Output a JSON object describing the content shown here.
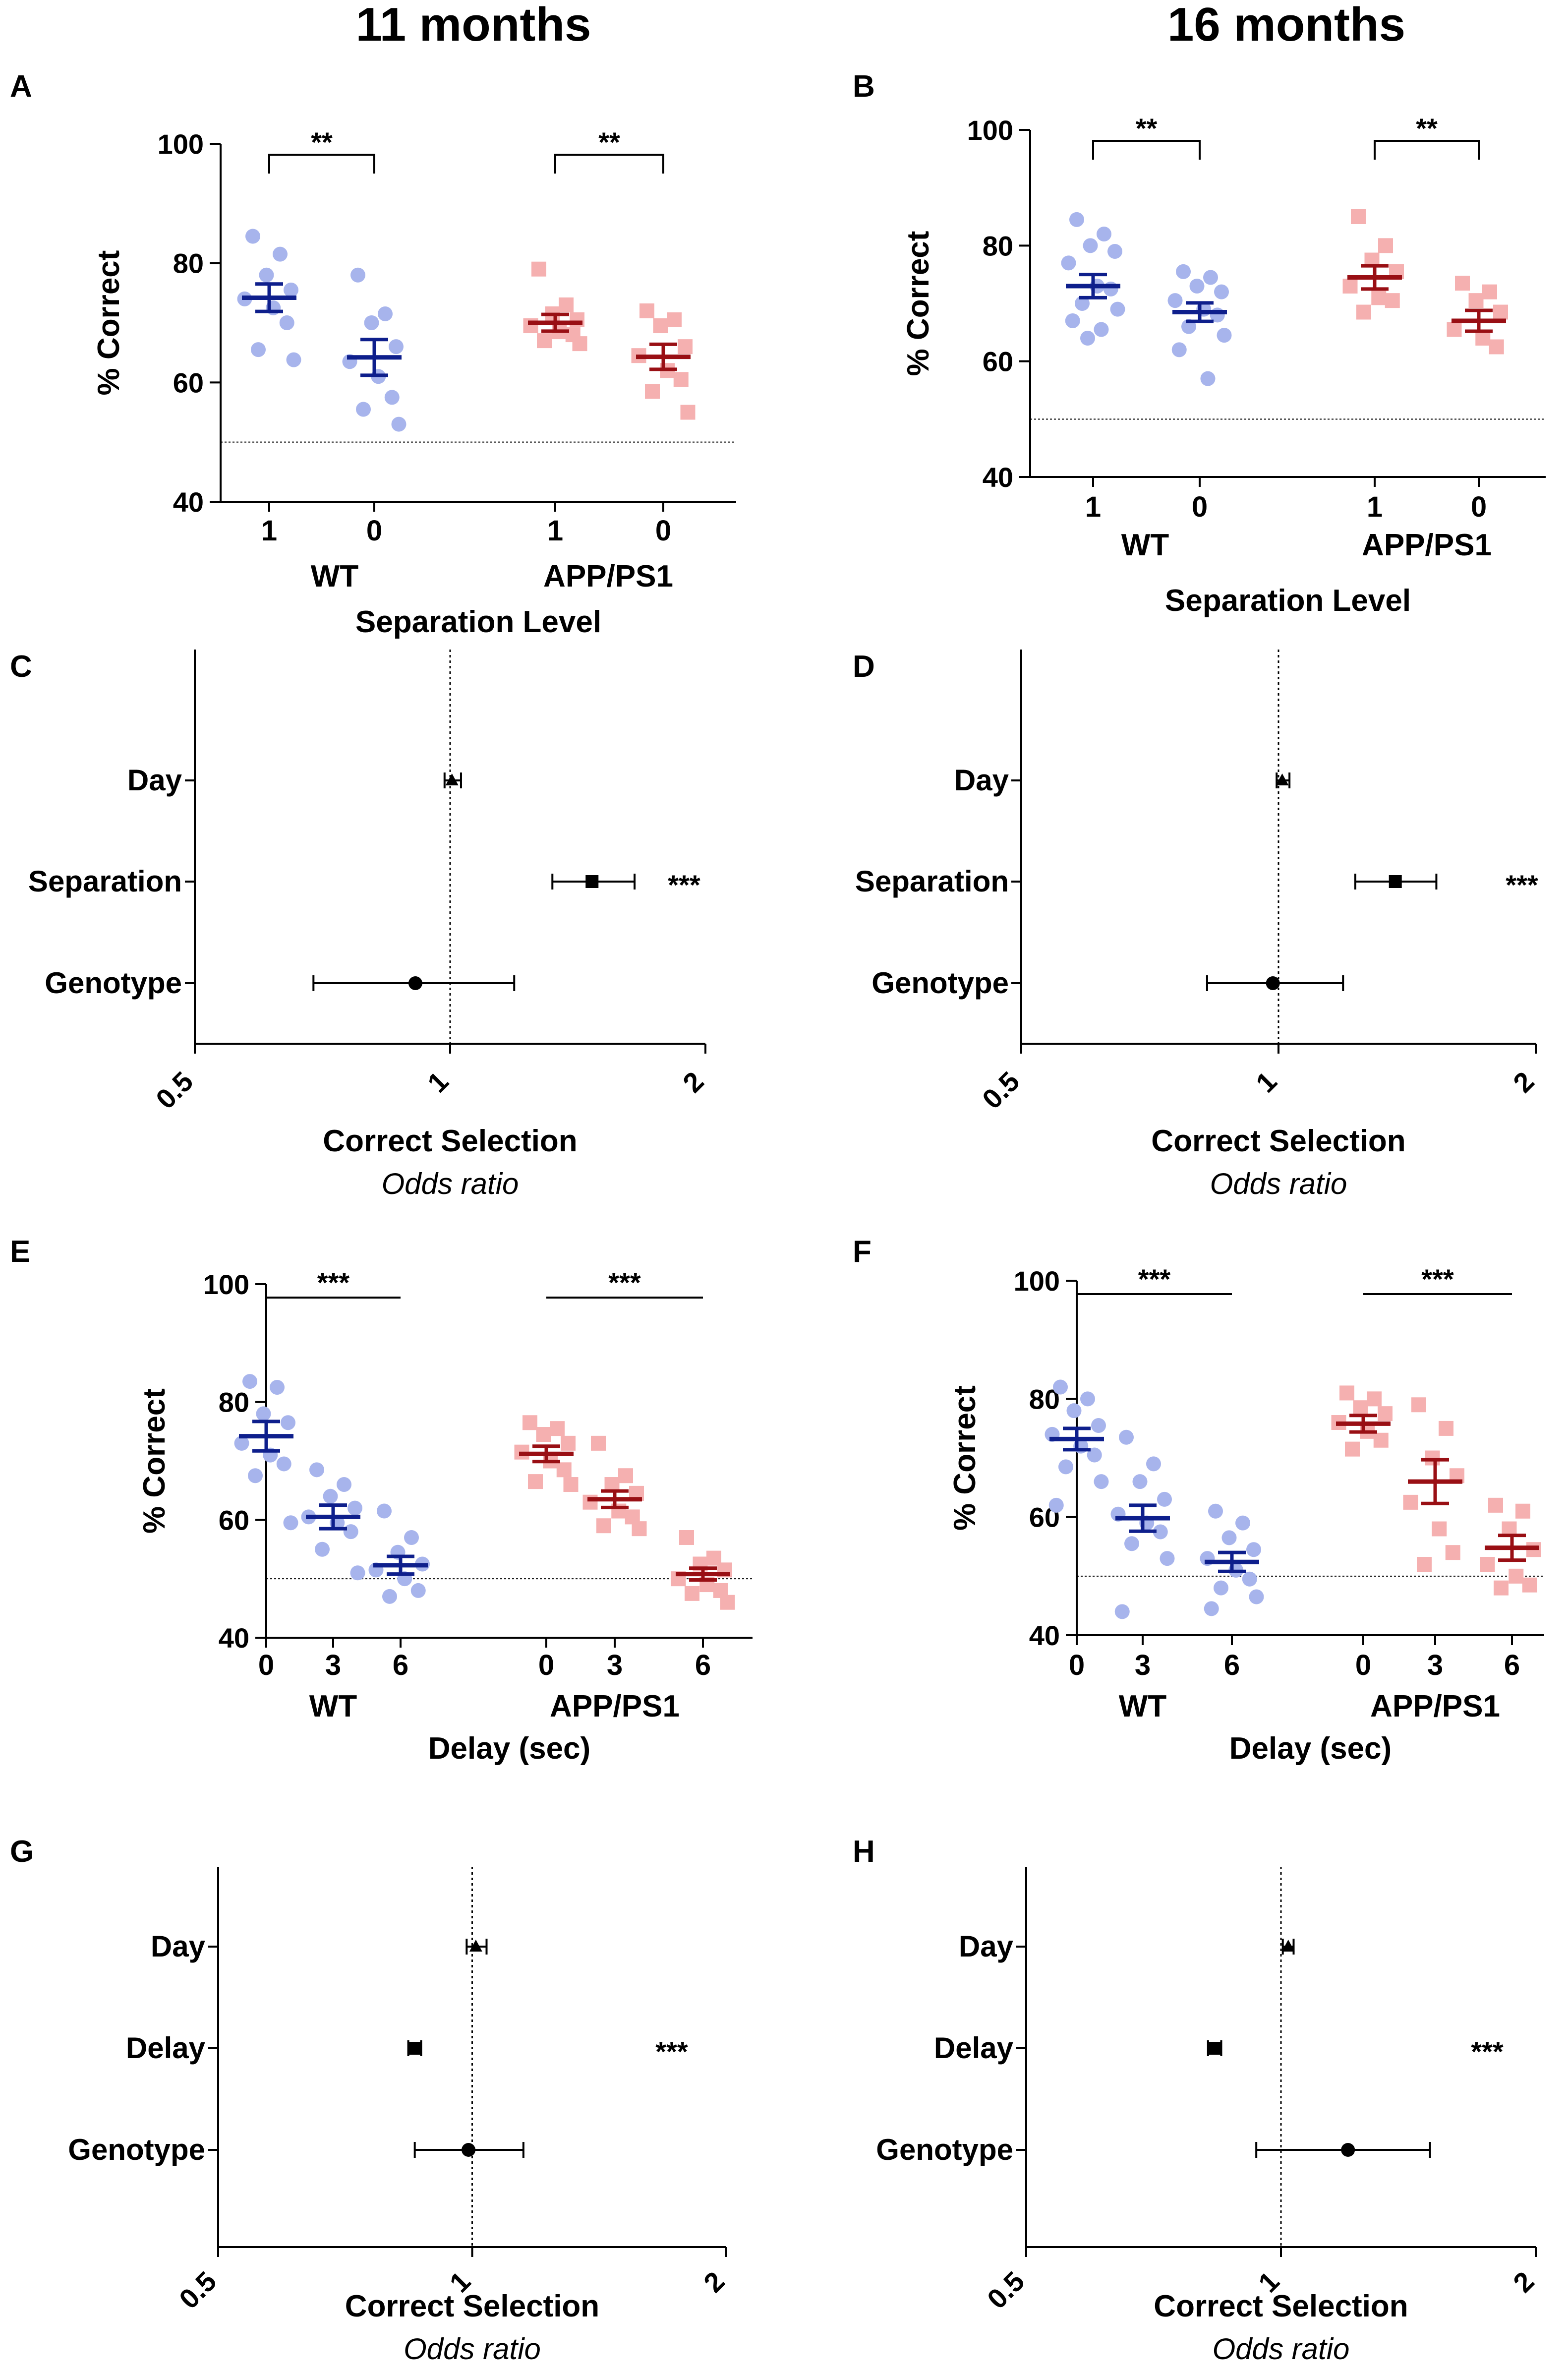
{
  "columns": [
    {
      "title": "11 months"
    },
    {
      "title": "16 months"
    }
  ],
  "colors": {
    "wt_point": "#a7b4ec",
    "wt_mean": "#0e1f8c",
    "app_point": "#f5b0b0",
    "app_mean": "#990f14",
    "axis": "#000000"
  },
  "chart_data": [
    {
      "type": "scatter",
      "panel": "A",
      "ylabel": "% Correct",
      "xlabel": "Separation Level",
      "ylim": [
        40,
        100
      ],
      "yticks": [
        40,
        60,
        80,
        100
      ],
      "chance": 50,
      "groups": [
        {
          "name": "WT",
          "series": [
            {
              "tick": "1",
              "mean": 74.2,
              "sem": 2.3,
              "points": [
                84.5,
                81.5,
                78.0,
                75.5,
                74.0,
                72.5,
                70.0,
                65.5,
                63.8
              ]
            },
            {
              "tick": "0",
              "mean": 64.2,
              "sem": 3.0,
              "points": [
                78.0,
                71.5,
                70.0,
                66.0,
                63.5,
                61.0,
                57.5,
                55.5,
                53.0
              ]
            }
          ]
        },
        {
          "name": "APP/PS1",
          "series": [
            {
              "tick": "1",
              "mean": 70.0,
              "sem": 1.4,
              "points": [
                79.0,
                73.0,
                71.5,
                70.5,
                69.5,
                68.5,
                68.0,
                67.0,
                66.5
              ]
            },
            {
              "tick": "0",
              "mean": 64.3,
              "sem": 2.1,
              "points": [
                72.0,
                70.5,
                69.5,
                66.0,
                64.5,
                62.0,
                60.5,
                58.5,
                55.0
              ]
            }
          ]
        }
      ],
      "brackets": [
        {
          "group": 0,
          "label": "**",
          "style": "bracket"
        },
        {
          "group": 1,
          "label": "**",
          "style": "bracket"
        }
      ]
    },
    {
      "type": "scatter",
      "panel": "B",
      "ylabel": "% Correct",
      "xlabel": "Separation Level",
      "ylim": [
        40,
        100
      ],
      "yticks": [
        40,
        60,
        80,
        100
      ],
      "chance": 50,
      "groups": [
        {
          "name": "WT",
          "series": [
            {
              "tick": "1",
              "mean": 73.0,
              "sem": 2.0,
              "points": [
                84.5,
                82.0,
                80.0,
                79.0,
                77.0,
                73.0,
                72.5,
                70.0,
                69.0,
                67.0,
                65.5,
                64.0
              ]
            },
            {
              "tick": "0",
              "mean": 68.5,
              "sem": 1.6,
              "points": [
                75.5,
                74.5,
                73.0,
                72.0,
                70.5,
                69.0,
                68.0,
                66.0,
                64.5,
                62.0,
                57.0
              ]
            }
          ]
        },
        {
          "name": "APP/PS1",
          "series": [
            {
              "tick": "1",
              "mean": 74.5,
              "sem": 2.0,
              "points": [
                85.0,
                80.0,
                77.5,
                75.5,
                73.0,
                71.0,
                70.5,
                68.5
              ]
            },
            {
              "tick": "0",
              "mean": 67.0,
              "sem": 1.8,
              "points": [
                73.5,
                72.0,
                70.5,
                68.5,
                65.5,
                64.0,
                62.5
              ]
            }
          ]
        }
      ],
      "brackets": [
        {
          "group": 0,
          "label": "**",
          "style": "bracket"
        },
        {
          "group": 1,
          "label": "**",
          "style": "bracket"
        }
      ]
    },
    {
      "type": "forest",
      "panel": "C",
      "xlabel": "Correct Selection",
      "xsublabel": "Odds ratio",
      "xlim": [
        0.5,
        2
      ],
      "xticks": [
        "0.5",
        "1",
        "2"
      ],
      "refline": 1,
      "rows": [
        {
          "label": "Day",
          "marker": "triangle",
          "or": 1.005,
          "lo": 0.985,
          "hi": 1.03,
          "sig": ""
        },
        {
          "label": "Separation",
          "marker": "square",
          "or": 1.47,
          "lo": 1.32,
          "hi": 1.65,
          "sig": "***"
        },
        {
          "label": "Genotype",
          "marker": "circle",
          "or": 0.91,
          "lo": 0.69,
          "hi": 1.19,
          "sig": ""
        }
      ]
    },
    {
      "type": "forest",
      "panel": "D",
      "xlabel": "Correct Selection",
      "xsublabel": "Odds ratio",
      "xlim": [
        0.5,
        2
      ],
      "xticks": [
        "0.5",
        "1",
        "2"
      ],
      "refline": 1,
      "rows": [
        {
          "label": "Day",
          "marker": "triangle",
          "or": 1.01,
          "lo": 0.995,
          "hi": 1.03,
          "sig": ""
        },
        {
          "label": "Separation",
          "marker": "square",
          "or": 1.37,
          "lo": 1.23,
          "hi": 1.53,
          "sig": "***"
        },
        {
          "label": "Genotype",
          "marker": "circle",
          "or": 0.985,
          "lo": 0.825,
          "hi": 1.19,
          "sig": ""
        }
      ]
    },
    {
      "type": "scatter",
      "panel": "E",
      "ylabel": "% Correct",
      "xlabel": "Delay (sec)",
      "ylim": [
        40,
        100
      ],
      "yticks": [
        40,
        60,
        80,
        100
      ],
      "chance": 50,
      "groups": [
        {
          "name": "WT",
          "series": [
            {
              "tick": "0",
              "mean": 74.2,
              "sem": 2.5,
              "points": [
                83.5,
                82.5,
                78.0,
                76.5,
                73.0,
                71.0,
                69.5,
                67.5,
                59.5
              ]
            },
            {
              "tick": "3",
              "mean": 60.5,
              "sem": 2.0,
              "points": [
                68.5,
                66.0,
                64.0,
                62.0,
                60.5,
                59.5,
                58.0,
                55.0,
                51.0
              ]
            },
            {
              "tick": "6",
              "mean": 52.3,
              "sem": 1.5,
              "points": [
                61.5,
                57.0,
                54.5,
                52.5,
                51.5,
                50.0,
                48.0,
                47.0
              ]
            }
          ]
        },
        {
          "name": "APP/PS1",
          "series": [
            {
              "tick": "0",
              "mean": 71.2,
              "sem": 1.3,
              "points": [
                76.5,
                75.5,
                74.5,
                73.0,
                71.5,
                70.0,
                68.5,
                66.5,
                66.0
              ]
            },
            {
              "tick": "3",
              "mean": 63.5,
              "sem": 1.4,
              "points": [
                73.0,
                67.5,
                66.0,
                64.5,
                63.0,
                61.5,
                60.5,
                59.0,
                58.5
              ]
            },
            {
              "tick": "6",
              "mean": 50.8,
              "sem": 1.0,
              "points": [
                57.0,
                53.5,
                52.5,
                51.5,
                50.0,
                49.0,
                48.0,
                47.5,
                46.0
              ]
            }
          ]
        }
      ],
      "brackets": [
        {
          "group": 0,
          "label": "***",
          "style": "line"
        },
        {
          "group": 1,
          "label": "***",
          "style": "line"
        }
      ]
    },
    {
      "type": "scatter",
      "panel": "F",
      "ylabel": "% Correct",
      "xlabel": "Delay (sec)",
      "ylim": [
        40,
        100
      ],
      "yticks": [
        40,
        60,
        80,
        100
      ],
      "chance": 50,
      "groups": [
        {
          "name": "WT",
          "series": [
            {
              "tick": "0",
              "mean": 73.2,
              "sem": 1.8,
              "points": [
                82.0,
                80.0,
                78.0,
                75.5,
                74.0,
                72.0,
                70.5,
                68.5,
                66.0,
                62.0
              ]
            },
            {
              "tick": "3",
              "mean": 59.8,
              "sem": 2.2,
              "points": [
                73.5,
                69.0,
                66.0,
                63.0,
                60.5,
                59.0,
                57.5,
                55.5,
                53.0,
                44.0
              ]
            },
            {
              "tick": "6",
              "mean": 52.4,
              "sem": 1.6,
              "points": [
                61.0,
                59.0,
                56.5,
                54.5,
                53.0,
                51.0,
                49.5,
                48.0,
                46.5,
                44.5
              ]
            }
          ]
        },
        {
          "name": "APP/PS1",
          "series": [
            {
              "tick": "0",
              "mean": 75.8,
              "sem": 1.4,
              "points": [
                81.0,
                80.0,
                78.5,
                77.5,
                76.0,
                74.5,
                73.0,
                71.5
              ]
            },
            {
              "tick": "3",
              "mean": 66.0,
              "sem": 3.7,
              "points": [
                79.0,
                75.0,
                70.0,
                67.0,
                62.5,
                58.0,
                54.0,
                52.0
              ]
            },
            {
              "tick": "6",
              "mean": 54.8,
              "sem": 2.1,
              "points": [
                62.0,
                61.0,
                58.0,
                54.5,
                52.0,
                50.0,
                48.5,
                48.0
              ]
            }
          ]
        }
      ],
      "brackets": [
        {
          "group": 0,
          "label": "***",
          "style": "line"
        },
        {
          "group": 1,
          "label": "***",
          "style": "line"
        }
      ]
    },
    {
      "type": "forest",
      "panel": "G",
      "xlabel": "Correct Selection",
      "xsublabel": "Odds ratio",
      "xlim": [
        0.5,
        2
      ],
      "xticks": [
        "0.5",
        "1",
        "2"
      ],
      "refline": 1,
      "rows": [
        {
          "label": "Day",
          "marker": "triangle",
          "or": 1.01,
          "lo": 0.985,
          "hi": 1.04,
          "sig": ""
        },
        {
          "label": "Delay",
          "marker": "square",
          "or": 0.855,
          "lo": 0.84,
          "hi": 0.87,
          "sig": "***"
        },
        {
          "label": "Genotype",
          "marker": "circle",
          "or": 0.99,
          "lo": 0.855,
          "hi": 1.15,
          "sig": ""
        }
      ]
    },
    {
      "type": "forest",
      "panel": "H",
      "xlabel": "Correct Selection",
      "xsublabel": "Odds ratio",
      "xlim": [
        0.5,
        2
      ],
      "xticks": [
        "0.5",
        "1",
        "2"
      ],
      "refline": 1,
      "rows": [
        {
          "label": "Day",
          "marker": "triangle",
          "or": 1.02,
          "lo": 1.005,
          "hi": 1.035,
          "sig": ""
        },
        {
          "label": "Delay",
          "marker": "square",
          "or": 0.835,
          "lo": 0.82,
          "hi": 0.85,
          "sig": "***"
        },
        {
          "label": "Genotype",
          "marker": "circle",
          "or": 1.2,
          "lo": 0.935,
          "hi": 1.5,
          "sig": ""
        }
      ]
    }
  ]
}
